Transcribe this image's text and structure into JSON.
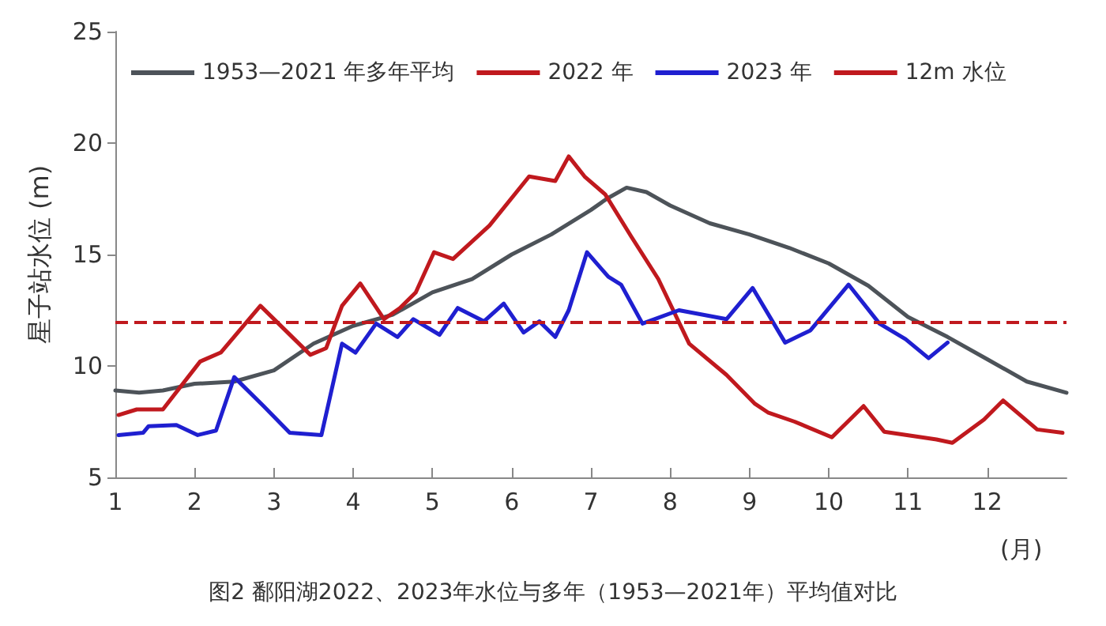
{
  "chart_data": {
    "type": "line",
    "ylabel": "星子站水位 (m)",
    "xlabel": "(月)",
    "xlim": [
      1,
      13
    ],
    "xticks": [
      1,
      2,
      3,
      4,
      5,
      6,
      7,
      8,
      9,
      10,
      11,
      12
    ],
    "ylim": [
      5,
      25
    ],
    "yticks": [
      5,
      10,
      15,
      20,
      25
    ],
    "grid": false,
    "legend": "top left",
    "marker": "none",
    "line_style": "solid",
    "annotations": [
      "图2 鄱阳湖2022、2023年水位与多年（1953—2021年）平均值对比"
    ],
    "ref_lines": [
      {
        "axis": "y",
        "value": 12,
        "label": "12m 水位",
        "color": "#c0191e",
        "line_style": "dashed"
      }
    ],
    "series": [
      {
        "name": "1953—2021 年多年平均",
        "color": "#4d5359",
        "x": [
          1,
          1.3,
          1.6,
          2,
          2.5,
          3,
          3.5,
          4,
          4.5,
          5,
          5.5,
          6,
          6.5,
          7,
          7.2,
          7.45,
          7.7,
          8,
          8.5,
          9,
          9.5,
          10,
          10.5,
          11,
          11.5,
          12,
          12.5,
          13
        ],
        "values": [
          8.9,
          8.8,
          8.9,
          9.2,
          9.3,
          9.8,
          11,
          11.8,
          12.3,
          13.3,
          13.9,
          15,
          15.9,
          17,
          17.5,
          18,
          17.8,
          17.2,
          16.4,
          15.9,
          15.3,
          14.6,
          13.6,
          12.2,
          11.3,
          10.3,
          9.3,
          8.8
        ]
      },
      {
        "name": "2022 年",
        "color": "#c0191e",
        "x": [
          1.04,
          1.27,
          1.6,
          2.07,
          2.33,
          2.83,
          3.46,
          3.66,
          3.86,
          4.09,
          4.39,
          4.59,
          4.79,
          5.02,
          5.26,
          5.72,
          6.22,
          6.55,
          6.72,
          6.92,
          7.18,
          7.51,
          7.85,
          8.24,
          8.71,
          9.07,
          9.24,
          9.57,
          10.04,
          10.44,
          10.7,
          11.36,
          11.56,
          11.96,
          12.2,
          12.63,
          12.95
        ],
        "values": [
          7.8,
          8.05,
          8.05,
          10.2,
          10.6,
          12.7,
          10.5,
          10.8,
          12.7,
          13.7,
          12.1,
          12.6,
          13.3,
          15.1,
          14.8,
          16.3,
          18.5,
          18.3,
          19.4,
          18.5,
          17.7,
          15.8,
          13.9,
          11,
          9.6,
          8.3,
          7.9,
          7.5,
          6.8,
          8.2,
          7.05,
          6.7,
          6.55,
          7.6,
          8.45,
          7.15,
          7
        ]
      },
      {
        "name": "2023 年",
        "color": "#1f1fd0",
        "x": [
          1.04,
          1.35,
          1.42,
          1.77,
          2.04,
          2.27,
          2.5,
          2.87,
          3.2,
          3.6,
          3.86,
          4.03,
          4.29,
          4.56,
          4.76,
          5.09,
          5.32,
          5.65,
          5.9,
          6.15,
          6.35,
          6.55,
          6.72,
          6.95,
          7.22,
          7.38,
          7.65,
          8.11,
          8.71,
          9.04,
          9.45,
          9.77,
          10.25,
          10.64,
          10.97,
          11.26,
          11.5
        ],
        "values": [
          6.9,
          7,
          7.3,
          7.35,
          6.9,
          7.1,
          9.5,
          8.2,
          7,
          6.9,
          11,
          10.6,
          11.9,
          11.3,
          12.1,
          11.4,
          12.6,
          12,
          12.8,
          11.5,
          12,
          11.3,
          12.5,
          15.1,
          14,
          13.65,
          11.9,
          12.5,
          12.1,
          13.5,
          11.05,
          11.6,
          13.65,
          11.9,
          11.2,
          10.35,
          11.05
        ]
      }
    ]
  }
}
